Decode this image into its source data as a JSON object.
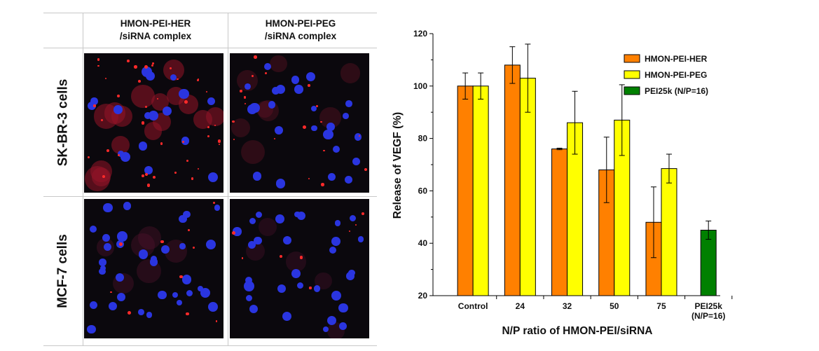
{
  "micrograph_panel": {
    "columns": [
      "HMON-PEI-HER\n/siRNA complex",
      "HMON-PEI-PEG\n/siRNA complex"
    ],
    "rows": [
      "SK-BR-3 cells",
      "MCF-7 cells"
    ]
  },
  "chart_data": {
    "type": "bar",
    "categories": [
      "Control",
      "24",
      "32",
      "50",
      "75",
      "PEI25k\n(N/P=16)"
    ],
    "series": [
      {
        "name": "HMON-PEI-HER",
        "color": "#ff8000",
        "values": [
          100,
          108,
          76,
          68,
          48,
          null
        ],
        "errors": [
          5,
          7,
          0.3,
          12.5,
          13.5,
          null
        ]
      },
      {
        "name": "HMON-PEI-PEG",
        "color": "#ffff00",
        "values": [
          100,
          103,
          86,
          87,
          68.5,
          null
        ],
        "errors": [
          5,
          13,
          12,
          13.5,
          5.5,
          null
        ]
      },
      {
        "name": "PEI25k (N/P=16)",
        "color": "#008000",
        "values": [
          null,
          null,
          null,
          null,
          null,
          45
        ],
        "errors": [
          null,
          null,
          null,
          null,
          null,
          3.5
        ]
      }
    ],
    "xlabel": "N/P ratio of HMON-PEI/siRNA",
    "ylabel": "Release of VEGF (%)",
    "ylim": [
      20,
      120
    ],
    "yticks": [
      20,
      40,
      60,
      80,
      100,
      120
    ],
    "legend_position": "top-right",
    "grid": false
  }
}
